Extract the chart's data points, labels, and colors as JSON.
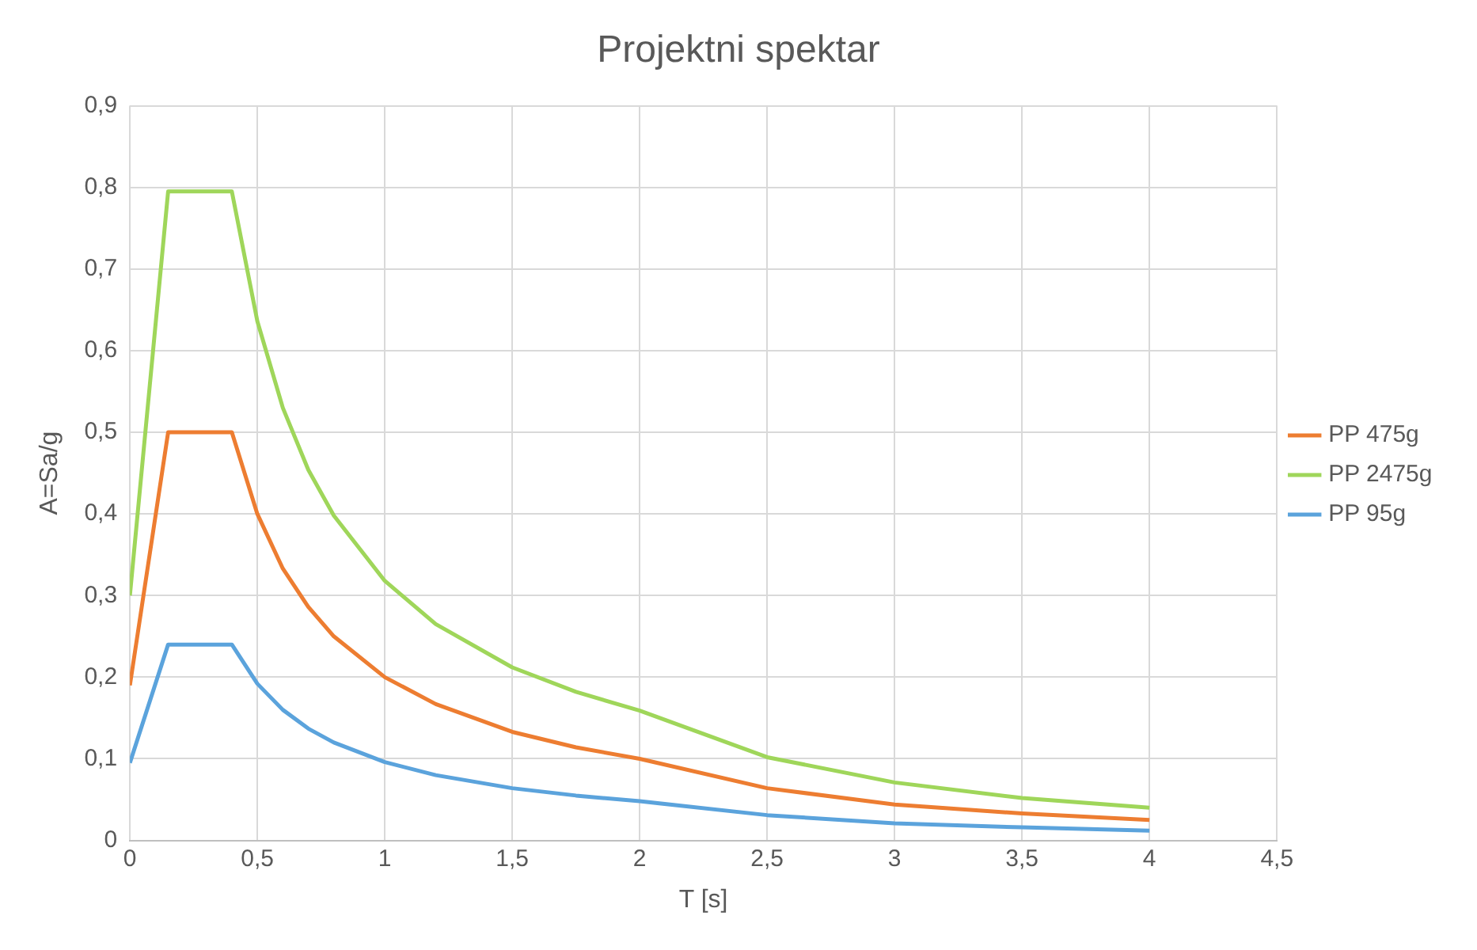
{
  "chart_data": {
    "type": "line",
    "title": "Projektni spektar",
    "xlabel": "T [s]",
    "ylabel": "A=Sa/g",
    "x": [
      0,
      0.15,
      0.4,
      0.5,
      0.6,
      0.7,
      0.8,
      1.0,
      1.2,
      1.5,
      1.75,
      2.0,
      2.5,
      3.0,
      3.5,
      4.0
    ],
    "series": [
      {
        "name": "PP 475g",
        "color": "#ed7d31",
        "values": [
          0.19,
          0.5,
          0.5,
          0.4,
          0.333,
          0.286,
          0.25,
          0.2,
          0.167,
          0.133,
          0.114,
          0.1,
          0.064,
          0.044,
          0.033,
          0.025
        ]
      },
      {
        "name": "PP 2475g",
        "color": "#9fd65a",
        "values": [
          0.3,
          0.795,
          0.795,
          0.636,
          0.53,
          0.454,
          0.398,
          0.318,
          0.265,
          0.212,
          0.182,
          0.159,
          0.102,
          0.071,
          0.052,
          0.04
        ]
      },
      {
        "name": "PP 95g",
        "color": "#5ba3dc",
        "values": [
          0.095,
          0.24,
          0.24,
          0.192,
          0.16,
          0.137,
          0.12,
          0.096,
          0.08,
          0.064,
          0.055,
          0.048,
          0.031,
          0.021,
          0.016,
          0.012
        ]
      }
    ],
    "xlim": [
      0,
      4.5
    ],
    "xticks": [
      0,
      {
        "value": 0.5,
        "label": "0,5"
      },
      1,
      {
        "value": 1.5,
        "label": "1,5"
      },
      2,
      {
        "value": 2.5,
        "label": "2,5"
      },
      3,
      {
        "value": 3.5,
        "label": "3,5"
      },
      4,
      {
        "value": 4.5,
        "label": "4,5"
      }
    ],
    "ylim": [
      0,
      0.9
    ],
    "yticks": [
      0,
      {
        "value": 0.1,
        "label": "0,1"
      },
      {
        "value": 0.2,
        "label": "0,2"
      },
      {
        "value": 0.3,
        "label": "0,3"
      },
      {
        "value": 0.4,
        "label": "0,4"
      },
      {
        "value": 0.5,
        "label": "0,5"
      },
      {
        "value": 0.6,
        "label": "0,6"
      },
      {
        "value": 0.7,
        "label": "0,7"
      },
      {
        "value": 0.8,
        "label": "0,8"
      },
      {
        "value": 0.9,
        "label": "0,9"
      }
    ],
    "grid": true,
    "legend": "right",
    "marker": "none",
    "line_style": "solid"
  }
}
